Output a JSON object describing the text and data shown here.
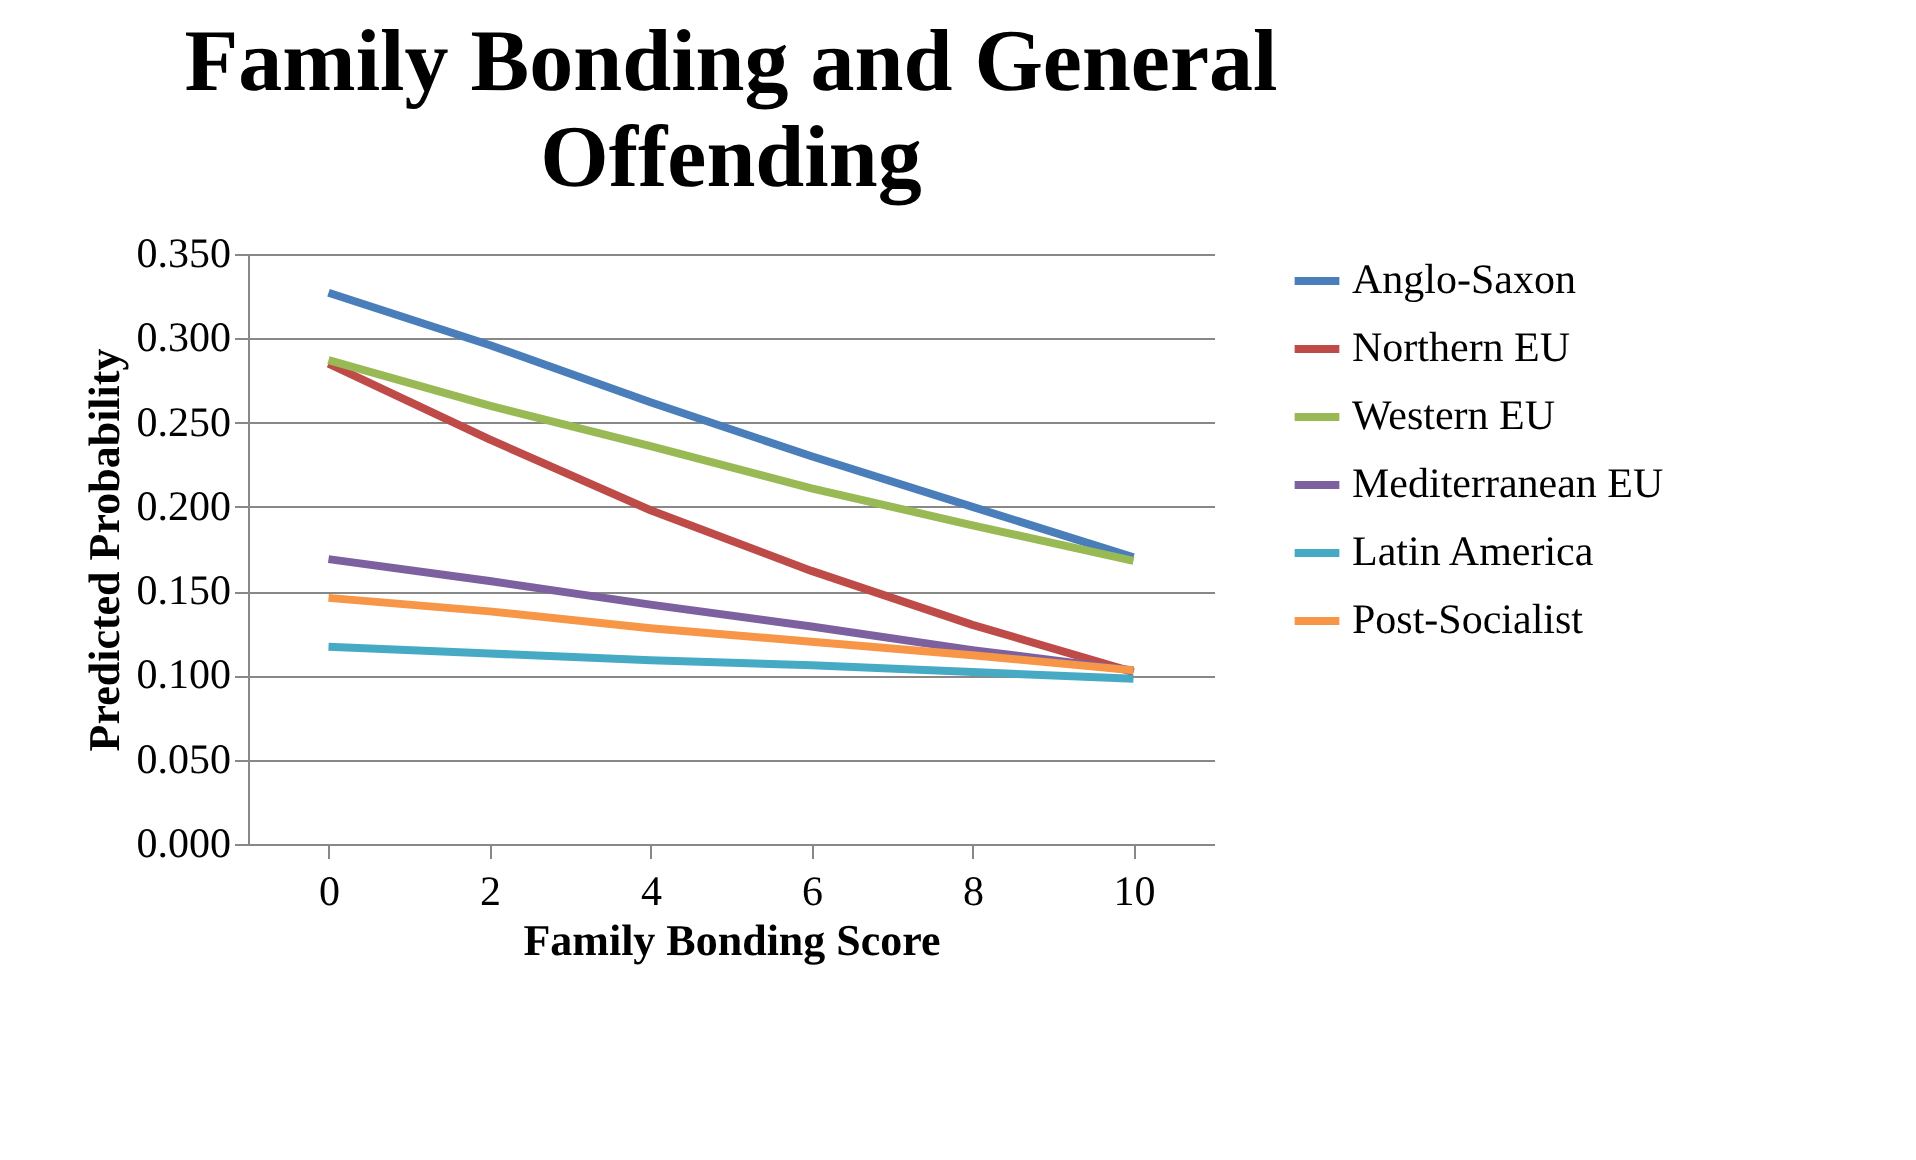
{
  "chart_data": {
    "type": "line",
    "title": "Family Bonding and General Offending",
    "xlabel": "Family Bonding Score",
    "ylabel": "Predicted Probability",
    "categories": [
      "0",
      "2",
      "4",
      "6",
      "8",
      "10"
    ],
    "series": [
      {
        "name": "Anglo-Saxon",
        "color": "#4a7ebb",
        "values": [
          0.327,
          0.296,
          0.262,
          0.23,
          0.2,
          0.17
        ]
      },
      {
        "name": "Northern EU",
        "color": "#be4b48",
        "values": [
          0.285,
          0.24,
          0.198,
          0.162,
          0.13,
          0.102
        ]
      },
      {
        "name": "Western EU",
        "color": "#98b954",
        "values": [
          0.287,
          0.26,
          0.236,
          0.211,
          0.189,
          0.168
        ]
      },
      {
        "name": "Mediterranean EU",
        "color": "#7d60a0",
        "values": [
          0.169,
          0.156,
          0.142,
          0.129,
          0.115,
          0.103
        ]
      },
      {
        "name": "Latin America",
        "color": "#46aac5",
        "values": [
          0.117,
          0.113,
          0.109,
          0.106,
          0.102,
          0.098
        ]
      },
      {
        "name": "Post-Socialist",
        "color": "#f79646",
        "values": [
          0.146,
          0.138,
          0.128,
          0.12,
          0.112,
          0.103
        ]
      }
    ],
    "ylim": [
      0,
      0.35
    ],
    "yticks": [
      {
        "value": 0,
        "label": "0.000"
      },
      {
        "value": 0.05,
        "label": "0.050"
      },
      {
        "value": 0.1,
        "label": "0.100"
      },
      {
        "value": 0.15,
        "label": "0.150"
      },
      {
        "value": 0.2,
        "label": "0.200"
      },
      {
        "value": 0.25,
        "label": "0.250"
      },
      {
        "value": 0.3,
        "label": "0.300"
      },
      {
        "value": 0.35,
        "label": "0.350"
      }
    ],
    "grid": "y",
    "legend": "right",
    "marker": "none",
    "line_style": "solid"
  }
}
